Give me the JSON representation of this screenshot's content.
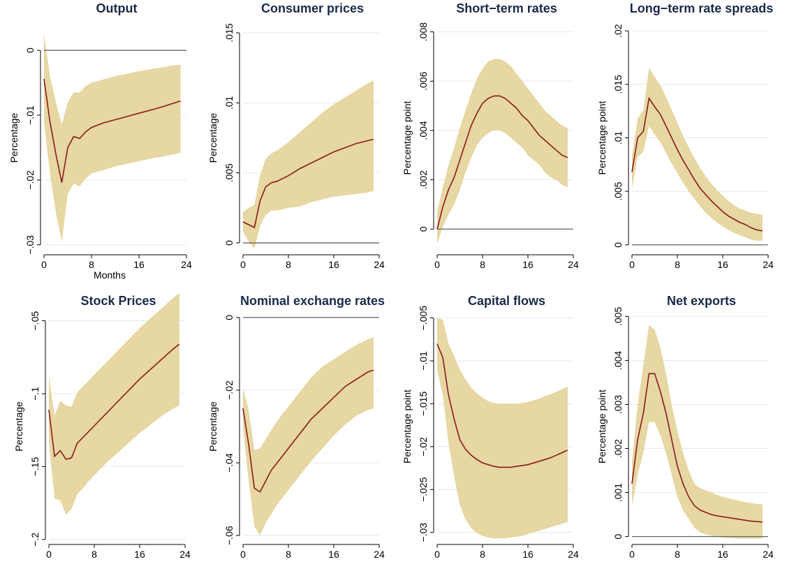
{
  "colors": {
    "band": "#e6d7a3",
    "line": "#8b1a1a",
    "zero_line": "#555555",
    "grid": "#e3e8ec",
    "title": "#1a2a4a"
  },
  "chart_data": [
    {
      "type": "line",
      "title": "Output",
      "xlabel": "Months",
      "ylabel": "Percentage",
      "xlim": [
        0,
        24
      ],
      "xticks": [
        0,
        8,
        16,
        24
      ],
      "ylim": [
        -0.031,
        0.004
      ],
      "yticks": [
        0,
        -0.01,
        -0.02,
        -0.03
      ],
      "ytick_labels": [
        "0",
        "−.01",
        "−.02",
        "−.03"
      ],
      "zero_line": true,
      "grid": true,
      "x": [
        0,
        1,
        2,
        3,
        4,
        5,
        6,
        7,
        8,
        10,
        12,
        14,
        16,
        18,
        20,
        22,
        23
      ],
      "series": [
        {
          "values": [
            -0.0044,
            -0.011,
            -0.016,
            -0.0204,
            -0.015,
            -0.0133,
            -0.0136,
            -0.0126,
            -0.0119,
            -0.0112,
            -0.0107,
            -0.0102,
            -0.0097,
            -0.0092,
            -0.0087,
            -0.0081,
            -0.0078
          ]
        }
      ],
      "band": {
        "lower": [
          -0.011,
          -0.019,
          -0.025,
          -0.0295,
          -0.0222,
          -0.0205,
          -0.021,
          -0.0198,
          -0.019,
          -0.0185,
          -0.0179,
          -0.0175,
          -0.0171,
          -0.0167,
          -0.0164,
          -0.016,
          -0.0158
        ],
        "upper": [
          0.0025,
          -0.004,
          -0.008,
          -0.0115,
          -0.008,
          -0.0065,
          -0.0065,
          -0.0055,
          -0.005,
          -0.0045,
          -0.004,
          -0.0036,
          -0.0032,
          -0.0029,
          -0.0026,
          -0.0023,
          -0.0022
        ]
      }
    },
    {
      "type": "line",
      "title": "Consumer prices",
      "xlabel": "",
      "ylabel": "Percentage",
      "xlim": [
        0,
        24
      ],
      "xticks": [
        0,
        8,
        16,
        24
      ],
      "ylim": [
        -0.0006,
        0.0156
      ],
      "yticks": [
        0,
        0.005,
        0.01,
        0.015
      ],
      "ytick_labels": [
        "0",
        ".005",
        ".01",
        ".015"
      ],
      "zero_line": true,
      "grid": true,
      "x": [
        0,
        1,
        2,
        3,
        4,
        5,
        6,
        7,
        8,
        10,
        12,
        14,
        16,
        18,
        20,
        22,
        23
      ],
      "series": [
        {
          "values": [
            0.0015,
            0.0013,
            0.0011,
            0.003,
            0.004,
            0.0043,
            0.0044,
            0.0046,
            0.0048,
            0.0053,
            0.0057,
            0.0061,
            0.0065,
            0.0068,
            0.0071,
            0.0073,
            0.0074
          ]
        }
      ],
      "band": {
        "lower": [
          0.0008,
          0.0001,
          -0.0004,
          0.0012,
          0.002,
          0.0023,
          0.0023,
          0.0024,
          0.0025,
          0.0026,
          0.0029,
          0.0031,
          0.0033,
          0.0034,
          0.0035,
          0.0036,
          0.0037
        ],
        "upper": [
          0.0022,
          0.0025,
          0.0027,
          0.0048,
          0.006,
          0.0064,
          0.0066,
          0.0069,
          0.0072,
          0.0079,
          0.0086,
          0.0093,
          0.0099,
          0.0104,
          0.0109,
          0.0114,
          0.0116
        ]
      }
    },
    {
      "type": "line",
      "title": "Short−term rates",
      "xlabel": "",
      "ylabel": "Percentage point",
      "xlim": [
        0,
        24
      ],
      "xticks": [
        0,
        8,
        16,
        24
      ],
      "ylim": [
        -0.0009,
        0.0083
      ],
      "yticks": [
        0,
        0.002,
        0.004,
        0.006,
        0.008
      ],
      "ytick_labels": [
        "0",
        ".002",
        ".004",
        ".006",
        ".008"
      ],
      "zero_line": true,
      "grid": true,
      "x": [
        0,
        1,
        2,
        3,
        4,
        5,
        6,
        7,
        8,
        9,
        10,
        11,
        12,
        13,
        14,
        15,
        16,
        17,
        18,
        19,
        20,
        21,
        22,
        23
      ],
      "series": [
        {
          "values": [
            0,
            0.0009,
            0.0016,
            0.0021,
            0.0028,
            0.0035,
            0.0042,
            0.0047,
            0.0051,
            0.0053,
            0.0054,
            0.0054,
            0.0053,
            0.0051,
            0.0049,
            0.0046,
            0.0044,
            0.0041,
            0.0038,
            0.0036,
            0.0034,
            0.0032,
            0.003,
            0.0029
          ]
        }
      ],
      "band": {
        "lower": [
          -0.0006,
          0.0001,
          0.0006,
          0.001,
          0.0016,
          0.0023,
          0.0029,
          0.0034,
          0.0037,
          0.0039,
          0.004,
          0.004,
          0.0039,
          0.0037,
          0.0035,
          0.0033,
          0.003,
          0.0028,
          0.0026,
          0.0023,
          0.0021,
          0.002,
          0.0018,
          0.0017
        ],
        "upper": [
          0.0007,
          0.0017,
          0.0026,
          0.0033,
          0.0041,
          0.0048,
          0.0055,
          0.0061,
          0.0065,
          0.0068,
          0.0069,
          0.0069,
          0.0068,
          0.0066,
          0.0063,
          0.006,
          0.0057,
          0.0054,
          0.0051,
          0.0048,
          0.0046,
          0.0044,
          0.0042,
          0.0041
        ]
      }
    },
    {
      "type": "line",
      "title": "Long−term rate spreads",
      "xlabel": "",
      "ylabel": "Percentage point",
      "xlim": [
        0,
        24
      ],
      "xticks": [
        0,
        8,
        16,
        24
      ],
      "ylim": [
        -0.0006,
        0.0206
      ],
      "yticks": [
        0,
        0.005,
        0.01,
        0.015,
        0.02
      ],
      "ytick_labels": [
        "0",
        ".005",
        ".01",
        ".015",
        ".02"
      ],
      "zero_line": true,
      "grid": true,
      "x": [
        0,
        1,
        2,
        3,
        4,
        5,
        6,
        7,
        8,
        9,
        10,
        11,
        12,
        13,
        14,
        15,
        16,
        17,
        18,
        19,
        20,
        21,
        22,
        23
      ],
      "series": [
        {
          "values": [
            0.0068,
            0.01,
            0.0106,
            0.0137,
            0.0129,
            0.0122,
            0.0111,
            0.01,
            0.0089,
            0.0079,
            0.007,
            0.0061,
            0.0053,
            0.0047,
            0.0041,
            0.0036,
            0.0031,
            0.0027,
            0.0024,
            0.0021,
            0.0019,
            0.0016,
            0.0014,
            0.0013
          ]
        }
      ],
      "band": {
        "lower": [
          0.0053,
          0.0082,
          0.0087,
          0.0111,
          0.0103,
          0.0096,
          0.0086,
          0.0076,
          0.0067,
          0.0058,
          0.005,
          0.0043,
          0.0036,
          0.003,
          0.0025,
          0.0021,
          0.0017,
          0.0014,
          0.0011,
          0.0009,
          0.0007,
          0.0005,
          0.0004,
          0.0004
        ],
        "upper": [
          0.0083,
          0.0118,
          0.0126,
          0.0165,
          0.0157,
          0.0149,
          0.0138,
          0.0126,
          0.0114,
          0.0102,
          0.0091,
          0.0081,
          0.0072,
          0.0064,
          0.0057,
          0.0051,
          0.0046,
          0.0041,
          0.0037,
          0.0034,
          0.0032,
          0.003,
          0.0029,
          0.0028
        ]
      }
    },
    {
      "type": "line",
      "title": "Stock Prices",
      "xlabel": "",
      "ylabel": "Percentage",
      "xlim": [
        0,
        24
      ],
      "xticks": [
        0,
        8,
        16,
        24
      ],
      "ylim": [
        -0.201,
        -0.044
      ],
      "yticks": [
        -0.05,
        -0.1,
        -0.15,
        -0.2
      ],
      "ytick_labels": [
        "−.05",
        "−.1",
        "−.15",
        "−.2"
      ],
      "zero_line": false,
      "grid": true,
      "x": [
        0,
        1,
        2,
        3,
        4,
        5,
        6,
        7,
        8,
        10,
        12,
        14,
        16,
        18,
        20,
        22,
        23
      ],
      "series": [
        {
          "values": [
            -0.111,
            -0.143,
            -0.139,
            -0.145,
            -0.144,
            -0.134,
            -0.13,
            -0.126,
            -0.122,
            -0.114,
            -0.106,
            -0.098,
            -0.09,
            -0.083,
            -0.076,
            -0.069,
            -0.066
          ]
        }
      ],
      "band": {
        "lower": [
          -0.133,
          -0.172,
          -0.173,
          -0.183,
          -0.179,
          -0.169,
          -0.165,
          -0.16,
          -0.156,
          -0.148,
          -0.141,
          -0.134,
          -0.127,
          -0.121,
          -0.115,
          -0.11,
          -0.108
        ],
        "upper": [
          -0.088,
          -0.115,
          -0.105,
          -0.108,
          -0.109,
          -0.099,
          -0.095,
          -0.091,
          -0.087,
          -0.079,
          -0.071,
          -0.063,
          -0.055,
          -0.048,
          -0.041,
          -0.034,
          -0.031
        ]
      }
    },
    {
      "type": "line",
      "title": "Nominal exchange rates",
      "xlabel": "",
      "ylabel": "Percentage",
      "xlim": [
        0,
        24
      ],
      "xticks": [
        0,
        8,
        16,
        24
      ],
      "ylim": [
        -0.0615,
        0.0015
      ],
      "yticks": [
        0,
        -0.02,
        -0.04,
        -0.06
      ],
      "ytick_labels": [
        "0",
        "−.02",
        "−.04",
        "−.06"
      ],
      "zero_line": true,
      "grid": true,
      "x": [
        0,
        1,
        2,
        3,
        4,
        5,
        6,
        7,
        8,
        10,
        12,
        14,
        16,
        18,
        20,
        22,
        23
      ],
      "series": [
        {
          "values": [
            -0.025,
            -0.035,
            -0.047,
            -0.048,
            -0.045,
            -0.042,
            -0.04,
            -0.038,
            -0.036,
            -0.032,
            -0.028,
            -0.025,
            -0.022,
            -0.019,
            -0.017,
            -0.015,
            -0.0145
          ]
        }
      ],
      "band": {
        "lower": [
          -0.0305,
          -0.045,
          -0.0575,
          -0.06,
          -0.0565,
          -0.054,
          -0.0515,
          -0.0495,
          -0.0475,
          -0.0435,
          -0.0395,
          -0.036,
          -0.0325,
          -0.0295,
          -0.027,
          -0.0255,
          -0.025
        ],
        "upper": [
          -0.0195,
          -0.0255,
          -0.0365,
          -0.036,
          -0.0335,
          -0.031,
          -0.0285,
          -0.0265,
          -0.0245,
          -0.0205,
          -0.0165,
          -0.0135,
          -0.0115,
          -0.0095,
          -0.0075,
          -0.006,
          -0.0055
        ]
      }
    },
    {
      "type": "line",
      "title": "Capital flows",
      "xlabel": "",
      "ylabel": "Percentage point",
      "xlim": [
        0,
        24
      ],
      "xticks": [
        0,
        8,
        16,
        24
      ],
      "ylim": [
        -0.031,
        -0.0043
      ],
      "yticks": [
        -0.005,
        -0.01,
        -0.015,
        -0.02,
        -0.025,
        -0.03
      ],
      "ytick_labels": [
        "−.005",
        "−.01",
        "−.015",
        "−.02",
        "−.025",
        "−.03"
      ],
      "zero_line": false,
      "grid": true,
      "x": [
        0,
        1,
        2,
        3,
        4,
        5,
        6,
        7,
        8,
        9,
        10,
        11,
        12,
        13,
        14,
        15,
        16,
        17,
        18,
        19,
        20,
        21,
        22,
        23
      ],
      "series": [
        {
          "values": [
            -0.008,
            -0.0096,
            -0.014,
            -0.0168,
            -0.0192,
            -0.0203,
            -0.021,
            -0.0215,
            -0.0219,
            -0.0221,
            -0.0223,
            -0.0224,
            -0.0224,
            -0.0224,
            -0.0223,
            -0.0222,
            -0.0221,
            -0.0219,
            -0.0217,
            -0.0215,
            -0.0213,
            -0.021,
            -0.0207,
            -0.0204
          ]
        }
      ],
      "band": {
        "lower": [
          -0.011,
          -0.014,
          -0.0195,
          -0.0235,
          -0.0268,
          -0.0285,
          -0.0295,
          -0.0301,
          -0.0304,
          -0.0306,
          -0.0307,
          -0.0307,
          -0.0307,
          -0.0306,
          -0.0305,
          -0.0304,
          -0.0302,
          -0.03,
          -0.0298,
          -0.0296,
          -0.0294,
          -0.0292,
          -0.029,
          -0.0288
        ],
        "upper": [
          -0.005,
          -0.0052,
          -0.008,
          -0.0095,
          -0.011,
          -0.0122,
          -0.0131,
          -0.0138,
          -0.0143,
          -0.0147,
          -0.0149,
          -0.015,
          -0.015,
          -0.015,
          -0.015,
          -0.0149,
          -0.0148,
          -0.0146,
          -0.0144,
          -0.0141,
          -0.0139,
          -0.0136,
          -0.0133,
          -0.013
        ]
      }
    },
    {
      "type": "line",
      "title": "Net exports",
      "xlabel": "",
      "ylabel": "Percentage point",
      "xlim": [
        0,
        24
      ],
      "xticks": [
        0,
        8,
        16,
        24
      ],
      "ylim": [
        -0.0001,
        0.0051
      ],
      "yticks": [
        0,
        0.001,
        0.002,
        0.003,
        0.004,
        0.005
      ],
      "ytick_labels": [
        "0",
        ".001",
        ".002",
        ".003",
        ".004",
        ".005"
      ],
      "zero_line": true,
      "grid": true,
      "x": [
        0,
        1,
        2,
        3,
        4,
        5,
        6,
        7,
        8,
        9,
        10,
        11,
        12,
        13,
        14,
        15,
        16,
        17,
        18,
        19,
        20,
        21,
        22,
        23
      ],
      "series": [
        {
          "values": [
            0.0012,
            0.0022,
            0.0028,
            0.0037,
            0.0037,
            0.0033,
            0.0028,
            0.0022,
            0.0016,
            0.0012,
            0.0009,
            0.0007,
            0.0006,
            0.00055,
            0.0005,
            0.00047,
            0.00045,
            0.00043,
            0.00041,
            0.00039,
            0.00037,
            0.00035,
            0.00034,
            0.00033
          ]
        }
      ],
      "band": {
        "lower": [
          0.0007,
          0.0014,
          0.0019,
          0.0026,
          0.0026,
          0.0023,
          0.0019,
          0.0014,
          0.0009,
          0.0006,
          0.0004,
          0.0002,
          0.0001,
          5e-05,
          2e-05,
          0.0,
          -2e-05,
          -3e-05,
          -4e-05,
          -5e-05,
          -5e-05,
          -5e-05,
          -5e-05,
          -5e-05
        ],
        "upper": [
          0.0017,
          0.003,
          0.0039,
          0.0048,
          0.0047,
          0.0043,
          0.0037,
          0.003,
          0.0024,
          0.0019,
          0.0015,
          0.0012,
          0.0011,
          0.00105,
          0.001,
          0.00095,
          0.0009,
          0.00087,
          0.00084,
          0.00081,
          0.00078,
          0.00076,
          0.00074,
          0.00073
        ]
      }
    }
  ]
}
